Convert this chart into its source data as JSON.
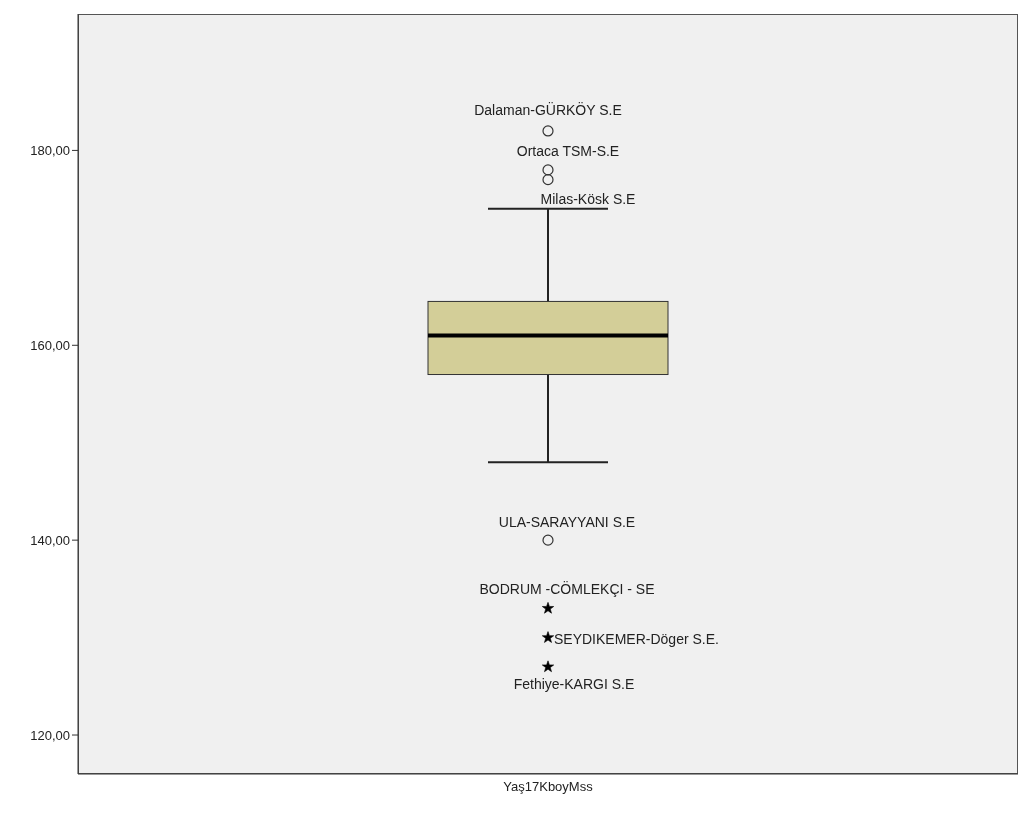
{
  "chart_data": {
    "type": "box",
    "categories": [
      "Yaş17KboyMss"
    ],
    "color": "#d3ce98",
    "boxes": [
      {
        "low": 148,
        "q1": 157,
        "median": 161,
        "q3": 164.5,
        "high": 174
      }
    ],
    "series": [
      {
        "type": "scatter",
        "marker": "circle",
        "color": "#333333",
        "x": [
          "Yaş17KboyMss",
          "Yaş17KboyMss",
          "Yaş17KboyMss",
          "Yaş17KboyMss"
        ],
        "values": [
          182,
          178,
          177,
          140
        ]
      },
      {
        "type": "scatter",
        "marker": "star",
        "color": "#000000",
        "x": [
          "Yaş17KboyMss",
          "Yaş17KboyMss",
          "Yaş17KboyMss"
        ],
        "values": [
          133,
          130,
          127
        ]
      }
    ],
    "ylim": [
      116,
      194
    ],
    "yticks": [
      {
        "value": 120,
        "label": "120,00"
      },
      {
        "value": 140,
        "label": "140,00"
      },
      {
        "value": 160,
        "label": "160,00"
      },
      {
        "value": 180,
        "label": "180,00"
      }
    ],
    "annotations": [
      {
        "text": "Dalaman-GÜRKÖY S.E",
        "x": "Yaş17KboyMss",
        "y": 182
      },
      {
        "text": "Ortaca TSM-S.E",
        "x": "Yaş17KboyMss",
        "y": 178
      },
      {
        "text": "Milas-Kösk S.E",
        "x": "Yaş17KboyMss",
        "y": 177
      },
      {
        "text": "ULA-SARAYYANI   S.E",
        "x": "Yaş17KboyMss",
        "y": 140
      },
      {
        "text": "BODRUM -CÖMLEKÇI - SE",
        "x": "Yaş17KboyMss",
        "y": 133
      },
      {
        "text": "SEYDIKEMER-Döger S.E.",
        "x": "Yaş17KboyMss",
        "y": 130
      },
      {
        "text": "Fethiye-KARGI  S.E",
        "x": "Yaş17KboyMss",
        "y": 127
      }
    ]
  }
}
